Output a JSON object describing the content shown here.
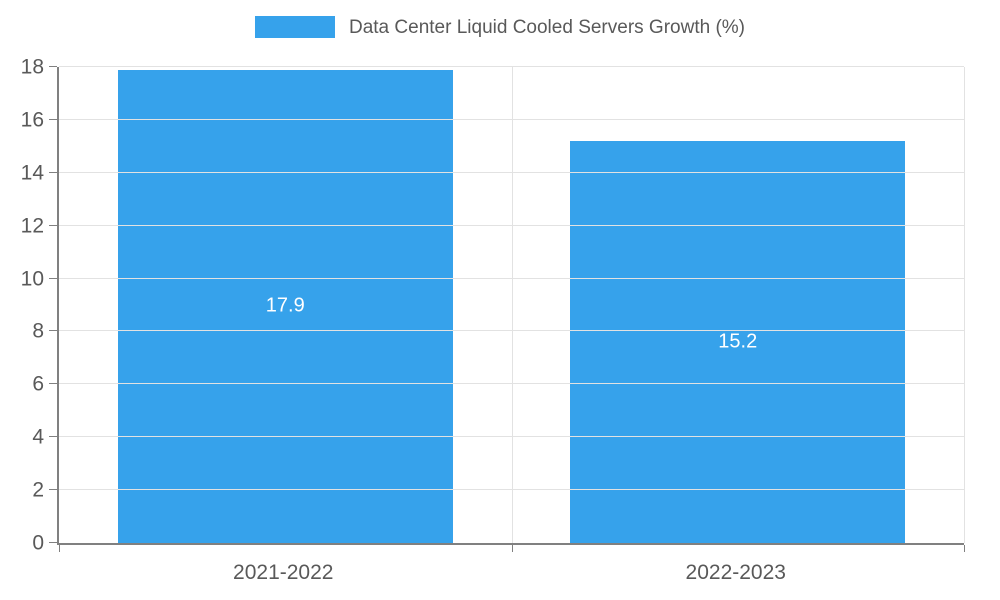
{
  "chart_data": {
    "type": "bar",
    "title": "Data Center Liquid Cooled Servers Growth (%)",
    "categories": [
      "2021-2022",
      "2022-2023"
    ],
    "values": [
      17.9,
      15.2
    ],
    "value_labels": [
      "17.9",
      "15.2"
    ],
    "xlabel": "",
    "ylabel": "",
    "ylim": [
      0,
      18
    ],
    "yticks": [
      0,
      2,
      4,
      6,
      8,
      10,
      12,
      14,
      16,
      18
    ],
    "grid": true,
    "legend_position": "top-center",
    "colors": {
      "bar": "#36A2EB",
      "bar_label": "#FFFFFF",
      "axis_text": "#595959",
      "axis_line": "#808080",
      "gridline": "#E2E2E2",
      "background": "#FFFFFF"
    }
  }
}
